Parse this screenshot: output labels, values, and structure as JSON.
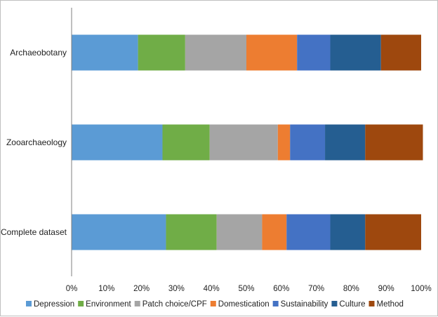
{
  "chart_data": {
    "type": "bar",
    "orientation": "horizontal",
    "stacked": "percent",
    "categories": [
      "Archaeobotany",
      "Zooarchaeology",
      "Complete dataset"
    ],
    "series": [
      {
        "name": "Depression",
        "color": "#5b9bd5",
        "values": [
          19,
          26,
          27
        ]
      },
      {
        "name": "Environment",
        "color": "#70ad47",
        "values": [
          13.5,
          13.5,
          14.5
        ]
      },
      {
        "name": "Patch choice/CPF",
        "color": "#a5a5a5",
        "values": [
          17.5,
          19.5,
          13
        ]
      },
      {
        "name": "Domestication",
        "color": "#ed7d31",
        "values": [
          14.5,
          3.5,
          7
        ]
      },
      {
        "name": "Sustainability",
        "color": "#4472c4",
        "values": [
          9.5,
          10,
          12.5
        ]
      },
      {
        "name": "Culture",
        "color": "#255e91",
        "values": [
          14.5,
          11.5,
          10
        ]
      },
      {
        "name": "Method",
        "color": "#9e480e",
        "values": [
          11.5,
          16.5,
          16
        ]
      }
    ],
    "x_ticks": [
      "0%",
      "10%",
      "20%",
      "30%",
      "40%",
      "50%",
      "60%",
      "70%",
      "80%",
      "90%",
      "100%"
    ],
    "xlim": [
      0,
      100
    ],
    "grid": false,
    "legend_position": "bottom",
    "title": "",
    "xlabel": "",
    "ylabel": ""
  }
}
